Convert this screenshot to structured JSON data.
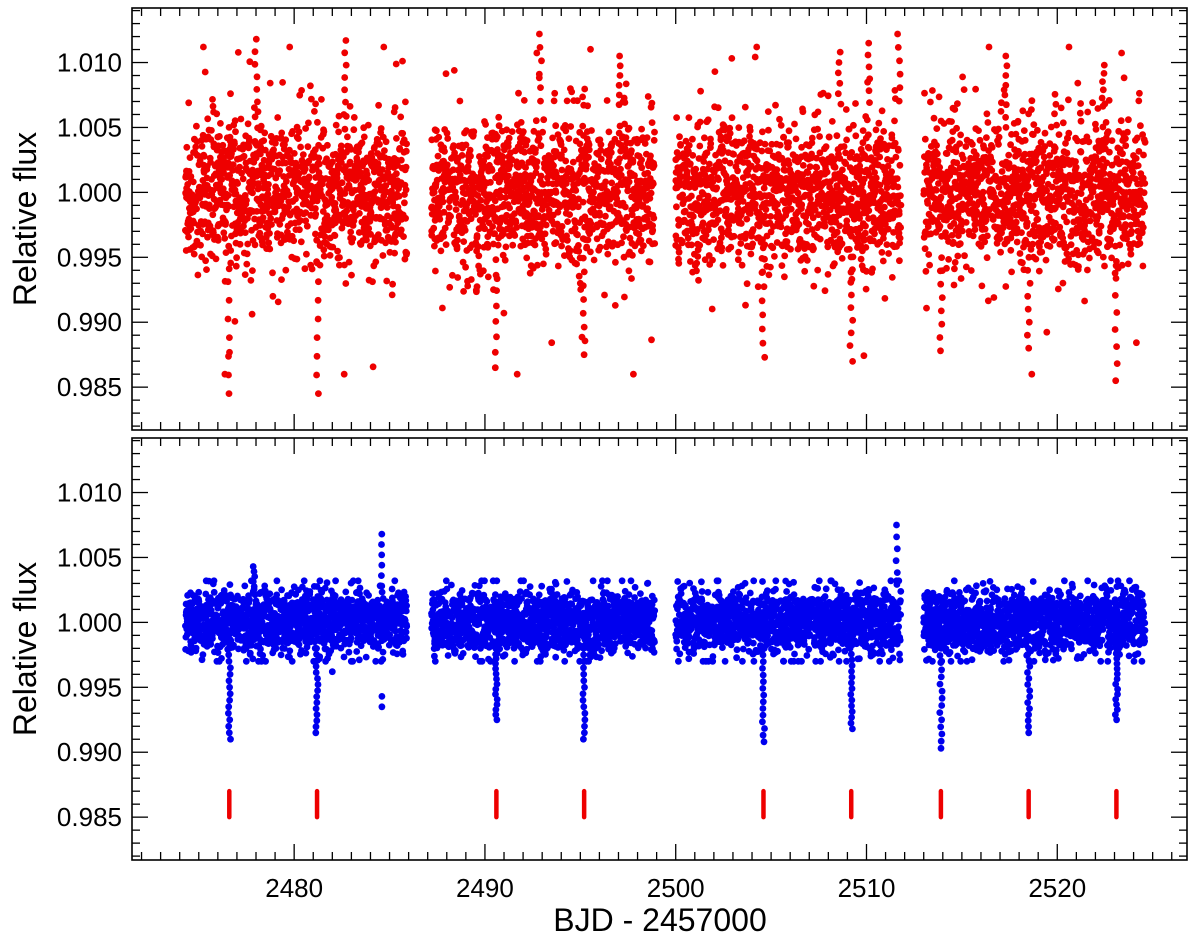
{
  "chart_data": [
    {
      "type": "scatter",
      "panel": "top",
      "title": "",
      "xlabel": "",
      "ylabel": "Relative flux",
      "xlim": [
        2471.5,
        2526.8
      ],
      "ylim": [
        0.9817,
        1.0142
      ],
      "yticks": [
        "0.985",
        "0.990",
        "0.995",
        "1.000",
        "1.005",
        "1.010"
      ],
      "xticks": [],
      "grid": false,
      "color": "#ee0000",
      "series": [
        {
          "segments": [
            [
              2474.3,
              2485.9
            ],
            [
              2487.2,
              2498.9
            ],
            [
              2500.0,
              2511.8
            ],
            [
              2513.0,
              2524.6
            ]
          ],
          "baseline": 1.0,
          "scatter_band": [
            0.9955,
            1.0045
          ],
          "outlier_range": [
            0.9845,
            1.0122
          ],
          "low_excursions": [
            [
              2476.6,
              0.9845
            ],
            [
              2481.2,
              0.9845
            ],
            [
              2490.6,
              0.9865
            ],
            [
              2495.2,
              0.9875
            ],
            [
              2504.6,
              0.9873
            ],
            [
              2509.2,
              0.9882
            ],
            [
              2513.9,
              0.9878
            ],
            [
              2518.5,
              0.988
            ],
            [
              2523.1,
              0.9855
            ]
          ],
          "high_excursions": [
            [
              2478.0,
              1.0118
            ],
            [
              2482.7,
              1.0117
            ],
            [
              2492.9,
              1.0122
            ],
            [
              2497.1,
              1.0105
            ],
            [
              2511.7,
              1.0122
            ],
            [
              2510.1,
              1.0115
            ],
            [
              2508.6,
              1.0108
            ],
            [
              2517.3,
              1.0105
            ],
            [
              2522.4,
              1.0098
            ]
          ]
        }
      ]
    },
    {
      "type": "scatter",
      "panel": "bottom",
      "title": "",
      "xlabel": "BJD - 2457000",
      "ylabel": "Relative flux",
      "xlim": [
        2471.5,
        2526.8
      ],
      "ylim": [
        0.9817,
        1.0142
      ],
      "yticks": [
        "0.985",
        "0.990",
        "0.995",
        "1.000",
        "1.005",
        "1.010"
      ],
      "xticks": [
        "2480",
        "2490",
        "2500",
        "2510",
        "2520"
      ],
      "grid": false,
      "color": "#0000ee",
      "marker_color": "#ee0000",
      "series": [
        {
          "segments": [
            [
              2474.3,
              2485.9
            ],
            [
              2487.2,
              2498.9
            ],
            [
              2500.0,
              2511.8
            ],
            [
              2513.0,
              2524.6
            ]
          ],
          "baseline": 1.0,
          "scatter_band": [
            0.998,
            1.002
          ],
          "transit_times": [
            2476.6,
            2481.2,
            2490.6,
            2495.2,
            2504.6,
            2509.2,
            2513.9,
            2518.5,
            2523.1
          ],
          "transit_depths": [
            0.991,
            0.9915,
            0.9925,
            0.991,
            0.9908,
            0.9918,
            0.9903,
            0.9915,
            0.9925
          ],
          "transit_marker_range": [
            0.985,
            0.987
          ],
          "flare_points": [
            [
              2484.6,
              1.0068
            ],
            [
              2511.6,
              1.0075
            ],
            [
              2477.9,
              1.0043
            ]
          ]
        }
      ]
    }
  ]
}
